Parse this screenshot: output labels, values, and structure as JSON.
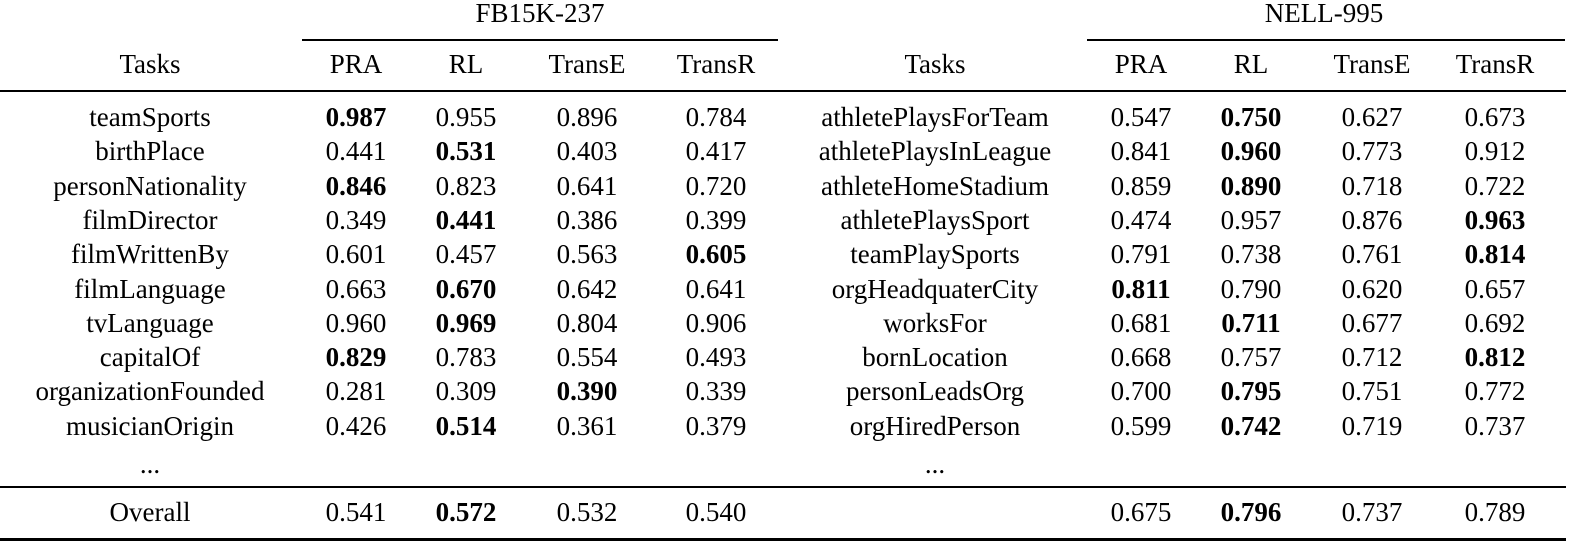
{
  "datasets": [
    {
      "name": "FB15K-237",
      "columns": [
        "Tasks",
        "PRA",
        "RL",
        "TransE",
        "TransR"
      ],
      "rows": [
        {
          "task": "teamSports",
          "values": [
            "0.987",
            "0.955",
            "0.896",
            "0.784"
          ],
          "best": 0
        },
        {
          "task": "birthPlace",
          "values": [
            "0.441",
            "0.531",
            "0.403",
            "0.417"
          ],
          "best": 1
        },
        {
          "task": "personNationality",
          "values": [
            "0.846",
            "0.823",
            "0.641",
            "0.720"
          ],
          "best": 0
        },
        {
          "task": "filmDirector",
          "values": [
            "0.349",
            "0.441",
            "0.386",
            "0.399"
          ],
          "best": 1
        },
        {
          "task": "filmWrittenBy",
          "values": [
            "0.601",
            "0.457",
            "0.563",
            "0.605"
          ],
          "best": 3
        },
        {
          "task": "filmLanguage",
          "values": [
            "0.663",
            "0.670",
            "0.642",
            "0.641"
          ],
          "best": 1
        },
        {
          "task": "tvLanguage",
          "values": [
            "0.960",
            "0.969",
            "0.804",
            "0.906"
          ],
          "best": 1
        },
        {
          "task": "capitalOf",
          "values": [
            "0.829",
            "0.783",
            "0.554",
            "0.493"
          ],
          "best": 0
        },
        {
          "task": "organizationFounded",
          "values": [
            "0.281",
            "0.309",
            "0.390",
            "0.339"
          ],
          "best": 2
        },
        {
          "task": "musicianOrigin",
          "values": [
            "0.426",
            "0.514",
            "0.361",
            "0.379"
          ],
          "best": 1
        }
      ],
      "ellipsis": "...",
      "overall_label": "Overall",
      "overall": {
        "values": [
          "0.541",
          "0.572",
          "0.532",
          "0.540"
        ],
        "best": 1
      }
    },
    {
      "name": "NELL-995",
      "columns": [
        "Tasks",
        "PRA",
        "RL",
        "TransE",
        "TransR"
      ],
      "rows": [
        {
          "task": "athletePlaysForTeam",
          "values": [
            "0.547",
            "0.750",
            "0.627",
            "0.673"
          ],
          "best": 1
        },
        {
          "task": "athletePlaysInLeague",
          "values": [
            "0.841",
            "0.960",
            "0.773",
            "0.912"
          ],
          "best": 1
        },
        {
          "task": "athleteHomeStadium",
          "values": [
            "0.859",
            "0.890",
            "0.718",
            "0.722"
          ],
          "best": 1
        },
        {
          "task": "athletePlaysSport",
          "values": [
            "0.474",
            "0.957",
            "0.876",
            "0.963"
          ],
          "best": 3
        },
        {
          "task": "teamPlaySports",
          "values": [
            "0.791",
            "0.738",
            "0.761",
            "0.814"
          ],
          "best": 3
        },
        {
          "task": "orgHeadquaterCity",
          "values": [
            "0.811",
            "0.790",
            "0.620",
            "0.657"
          ],
          "best": 0
        },
        {
          "task": "worksFor",
          "values": [
            "0.681",
            "0.711",
            "0.677",
            "0.692"
          ],
          "best": 1
        },
        {
          "task": "bornLocation",
          "values": [
            "0.668",
            "0.757",
            "0.712",
            "0.812"
          ],
          "best": 3
        },
        {
          "task": "personLeadsOrg",
          "values": [
            "0.700",
            "0.795",
            "0.751",
            "0.772"
          ],
          "best": 1
        },
        {
          "task": "orgHiredPerson",
          "values": [
            "0.599",
            "0.742",
            "0.719",
            "0.737"
          ],
          "best": 1
        }
      ],
      "ellipsis": "...",
      "overall_label": "",
      "overall": {
        "values": [
          "0.675",
          "0.796",
          "0.737",
          "0.789"
        ],
        "best": 1
      }
    }
  ]
}
